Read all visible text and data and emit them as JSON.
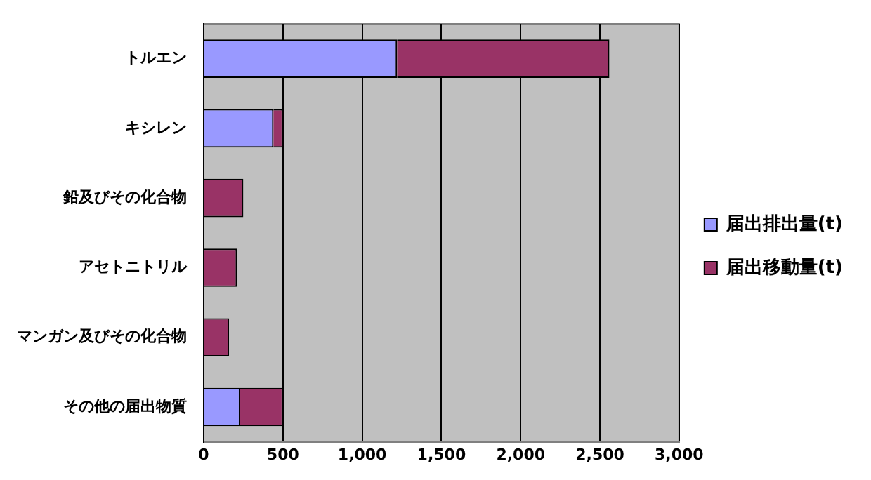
{
  "chart_data": {
    "type": "bar",
    "orientation": "horizontal",
    "stacked": true,
    "categories": [
      "トルエン",
      "キシレン",
      "鉛及びその化合物",
      "アセトニトリル",
      "マンガン及びその化合物",
      "その他の届出物質"
    ],
    "series": [
      {
        "name": "届出排出量(t)",
        "color": "#9999ff",
        "values": [
          1220,
          440,
          0,
          0,
          0,
          230
        ]
      },
      {
        "name": "届出移動量(t)",
        "color": "#993366",
        "values": [
          1340,
          60,
          250,
          210,
          160,
          270
        ]
      }
    ],
    "xlim": [
      0,
      3000
    ],
    "xticks": [
      0,
      500,
      {
        "value": 1000,
        "label": "1,000"
      },
      {
        "value": 1500,
        "label": "1,500"
      },
      {
        "value": 2000,
        "label": "2,000"
      },
      {
        "value": 2500,
        "label": "2,500"
      },
      {
        "value": 3000,
        "label": "3,000"
      }
    ],
    "grid": "x",
    "legend": "right"
  }
}
